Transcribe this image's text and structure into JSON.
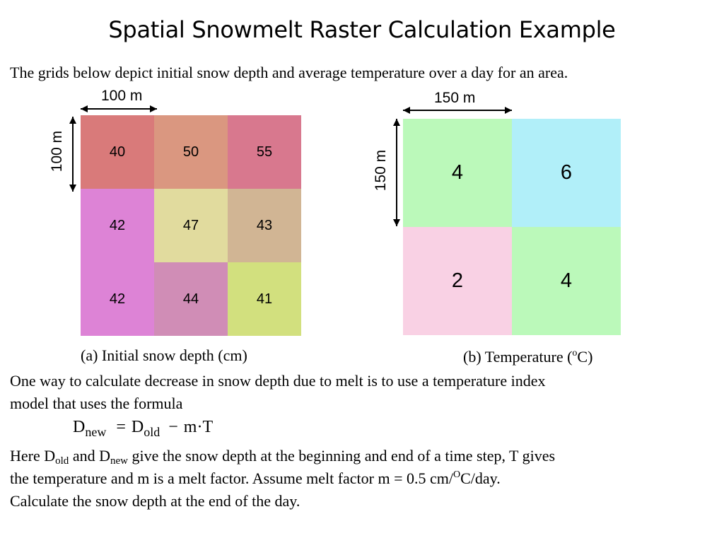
{
  "title": "Spatial Snowmelt Raster Calculation Example",
  "intro": "The grids below depict initial snow depth and average temperature over a day for an area.",
  "grid_a": {
    "width_label": "100 m",
    "height_label": "100 m",
    "caption": "(a) Initial snow depth (cm)",
    "cells": [
      {
        "value": "40",
        "color": "#D97A7A"
      },
      {
        "value": "50",
        "color": "#DA9780"
      },
      {
        "value": "55",
        "color": "#D8788E"
      },
      {
        "value": "42",
        "color": "#DD83D6"
      },
      {
        "value": "47",
        "color": "#E1DB9E"
      },
      {
        "value": "43",
        "color": "#D1B594"
      },
      {
        "value": "42",
        "color": "#DD83D6"
      },
      {
        "value": "44",
        "color": "#D08DB6"
      },
      {
        "value": "41",
        "color": "#D2E07E"
      }
    ]
  },
  "grid_b": {
    "width_label": "150 m",
    "height_label": "150 m",
    "caption_pre": "(b) Temperature (",
    "caption_sup": "o",
    "caption_post": "C)",
    "cells": [
      {
        "value": "4",
        "color": "#BBF9BA"
      },
      {
        "value": "6",
        "color": "#B1EFF9"
      },
      {
        "value": "2",
        "color": "#F9D1E4"
      },
      {
        "value": "4",
        "color": "#BBF9BA"
      }
    ]
  },
  "paragraph1_line1": "One way to calculate decrease in snow depth due to melt is to use a temperature index",
  "paragraph1_line2": "model that uses the formula",
  "formula": {
    "d1": "D",
    "sub1": "new",
    "eq": "=",
    "d2": "D",
    "sub2": "old",
    "minus": "−",
    "rest": "m·T"
  },
  "paragraph2": {
    "line1_a": "Here D",
    "line1_sub_old": "old",
    "line1_b": " and D",
    "line1_sub_new": "new",
    "line1_c": " give the snow depth at the beginning and end of a time step, T gives",
    "line2_a": "the temperature and m is a melt factor.  Assume melt factor m = 0.5 cm/",
    "line2_sup": "O",
    "line2_b": "C/day.",
    "line3": "Calculate the snow depth at the end of the day."
  }
}
